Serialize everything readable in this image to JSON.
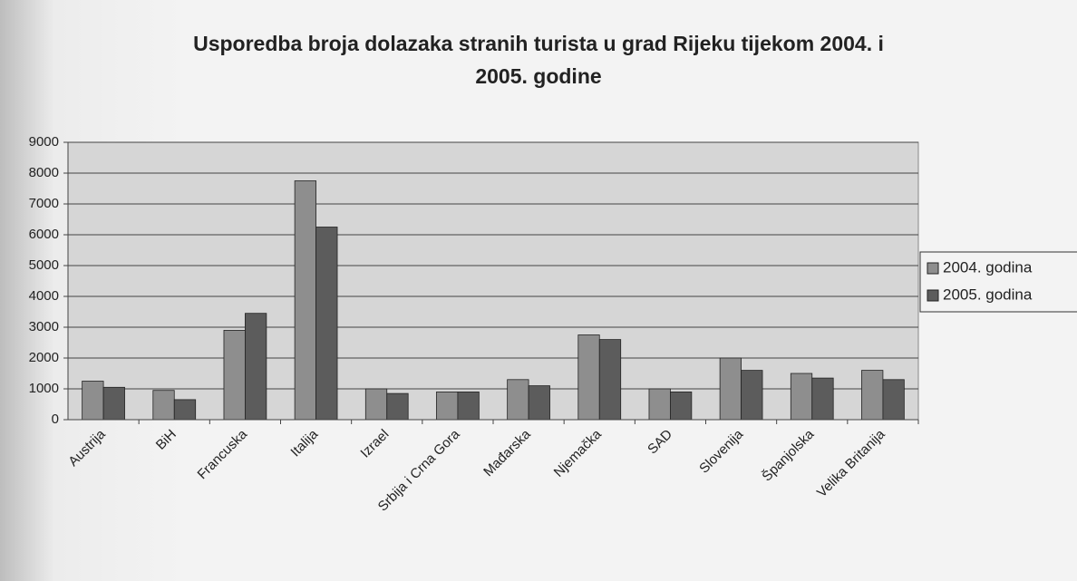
{
  "chart_data": {
    "type": "bar",
    "title": "Usporedba broja dolazaka stranih turista u grad Rijeku tijekom 2004. i 2005. godine",
    "categories": [
      "Austrija",
      "BiH",
      "Francuska",
      "Italija",
      "Izrael",
      "Srbija i Crna Gora",
      "Mađarska",
      "Njemačka",
      "SAD",
      "Slovenija",
      "Španjolska",
      "Velika Britanija"
    ],
    "series": [
      {
        "name": "2004. godina",
        "color": "#8e8e8e",
        "values": [
          1250,
          950,
          2900,
          7750,
          1000,
          900,
          1300,
          2750,
          1000,
          2000,
          1500,
          1600
        ]
      },
      {
        "name": "2005. godina",
        "color": "#5c5c5c",
        "values": [
          1050,
          650,
          3450,
          6250,
          850,
          900,
          1100,
          2600,
          900,
          1600,
          1350,
          1300
        ]
      }
    ],
    "ylim": [
      0,
      9000
    ],
    "yticks": [
      0,
      1000,
      2000,
      3000,
      4000,
      5000,
      6000,
      7000,
      8000,
      9000
    ],
    "grid": true,
    "legend": "right"
  }
}
